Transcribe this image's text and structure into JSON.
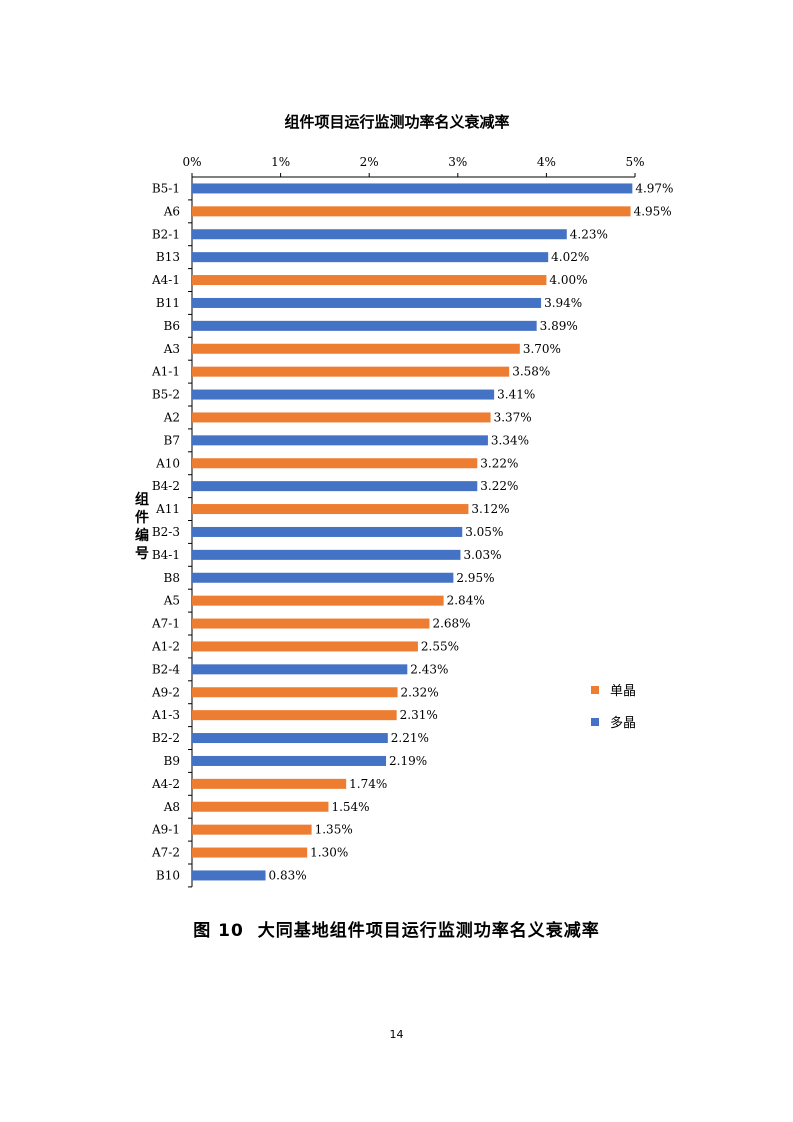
{
  "chart_data": {
    "type": "bar",
    "orientation": "horizontal",
    "title": "组件项目运行监测功率名义衰减率",
    "ylabel": "组件编号",
    "xlabel": "",
    "xlim": [
      0,
      5
    ],
    "x_ticks": [
      "0%",
      "1%",
      "2%",
      "3%",
      "4%",
      "5%"
    ],
    "x_axis_position": "top",
    "grid": false,
    "legend_position": "right",
    "value_format": "percent-2dp",
    "legend": [
      {
        "name": "单晶",
        "color": "#ED7D31"
      },
      {
        "name": "多晶",
        "color": "#4472C4"
      }
    ],
    "categories": [
      "B5-1",
      "A6",
      "B2-1",
      "B13",
      "A4-1",
      "B11",
      "B6",
      "A3",
      "A1-1",
      "B5-2",
      "A2",
      "B7",
      "A10",
      "B4-2",
      "A11",
      "B2-3",
      "B4-1",
      "B8",
      "A5",
      "A7-1",
      "A1-2",
      "B2-4",
      "A9-2",
      "A1-3",
      "B2-2",
      "B9",
      "A4-2",
      "A8",
      "A9-1",
      "A7-2",
      "B10"
    ],
    "values": [
      4.97,
      4.95,
      4.23,
      4.02,
      4.0,
      3.94,
      3.89,
      3.7,
      3.58,
      3.41,
      3.37,
      3.34,
      3.22,
      3.22,
      3.12,
      3.05,
      3.03,
      2.95,
      2.84,
      2.68,
      2.55,
      2.43,
      2.32,
      2.31,
      2.21,
      2.19,
      1.74,
      1.54,
      1.35,
      1.3,
      0.83
    ],
    "bar_type": [
      "多晶",
      "单晶",
      "多晶",
      "多晶",
      "单晶",
      "多晶",
      "多晶",
      "单晶",
      "单晶",
      "多晶",
      "单晶",
      "多晶",
      "单晶",
      "多晶",
      "单晶",
      "多晶",
      "多晶",
      "多晶",
      "单晶",
      "单晶",
      "单晶",
      "多晶",
      "单晶",
      "单晶",
      "多晶",
      "多晶",
      "单晶",
      "单晶",
      "单晶",
      "单晶",
      "多晶"
    ]
  },
  "figure": {
    "caption_number": "图 10",
    "caption_text": "大同基地组件项目运行监测功率名义衰减率"
  },
  "page": {
    "number": "14"
  }
}
